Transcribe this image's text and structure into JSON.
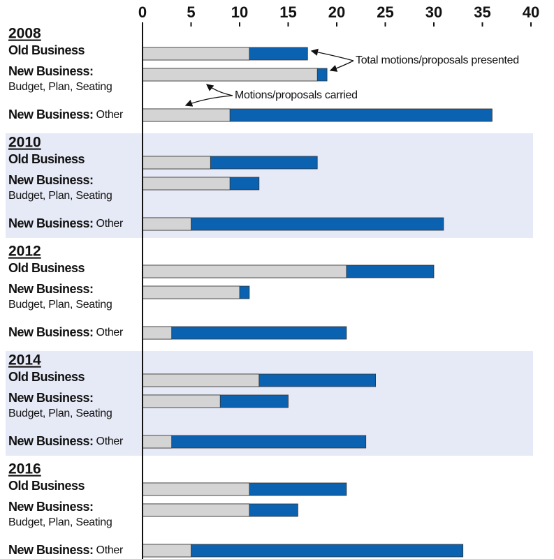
{
  "chart_data": {
    "type": "bar",
    "groups": [
      "2008",
      "2010",
      "2012",
      "2014",
      "2016"
    ],
    "categories": [
      {
        "label": "Old Business"
      },
      {
        "label": "New Business:",
        "detail": "Budget, Plan, Seating"
      },
      {
        "label": "New Business:",
        "detail": "Other"
      }
    ],
    "series": [
      {
        "name": "Total motions/proposals presented",
        "color": "#0a62b0",
        "values": [
          [
            17,
            19,
            36
          ],
          [
            18,
            12,
            31
          ],
          [
            30,
            11,
            21
          ],
          [
            24,
            15,
            23
          ],
          [
            21,
            16,
            33
          ]
        ]
      },
      {
        "name": "Motions/proposals carried",
        "color": "#d4d4d4",
        "values": [
          [
            11,
            18,
            9
          ],
          [
            7,
            9,
            5
          ],
          [
            21,
            10,
            3
          ],
          [
            12,
            8,
            3
          ],
          [
            11,
            11,
            5
          ]
        ]
      }
    ],
    "xlim": [
      0,
      40
    ],
    "xticks": [
      0,
      5,
      10,
      15,
      20,
      25,
      30,
      35,
      40
    ]
  }
}
